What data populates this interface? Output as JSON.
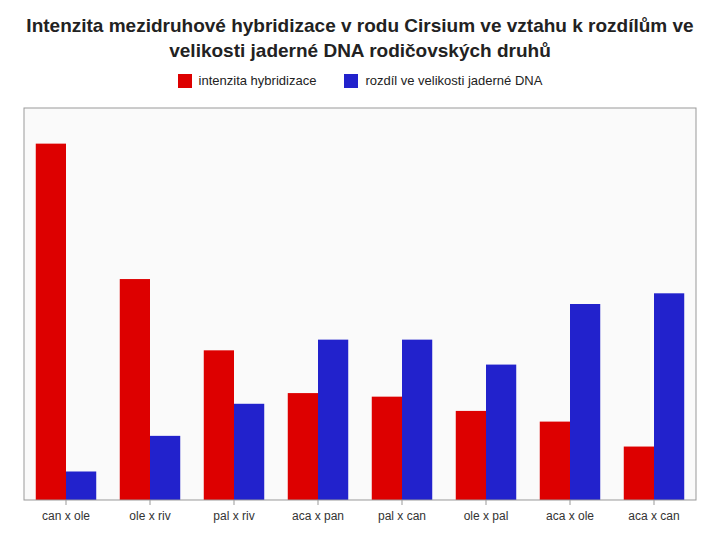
{
  "chart_data": {
    "type": "bar",
    "title": "Intenzita mezidruhové hybridizace v rodu Cirsium ve vztahu k rozdílům ve velikosti jaderné DNA rodičovských druhů",
    "categories": [
      "can x ole",
      "ole x riv",
      "pal x riv",
      "aca x pan",
      "pal x can",
      "ole x pal",
      "aca x ole",
      "aca x can"
    ],
    "series": [
      {
        "name": "intenzita hybridizace",
        "color": "#dd0000",
        "values": [
          100,
          62,
          42,
          30,
          29,
          25,
          22,
          15
        ]
      },
      {
        "name": "rozdíl ve velikosti jaderné DNA",
        "color": "#2222cc",
        "values": [
          8,
          18,
          27,
          45,
          45,
          38,
          55,
          58
        ]
      }
    ],
    "ylim": [
      0,
      110
    ],
    "grid": false,
    "legend": "top",
    "tick_labels": "x"
  }
}
